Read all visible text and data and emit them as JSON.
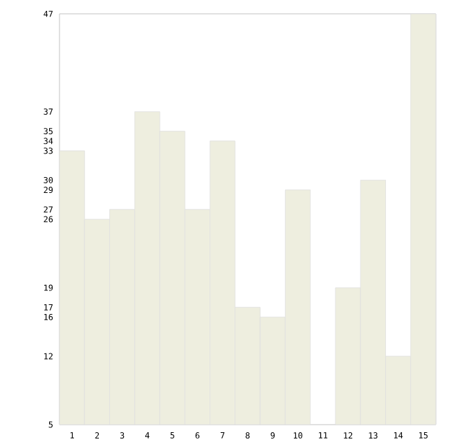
{
  "chart_data": {
    "type": "bar",
    "categories": [
      "1",
      "2",
      "3",
      "4",
      "5",
      "6",
      "7",
      "8",
      "9",
      "10",
      "11",
      "12",
      "13",
      "14",
      "15"
    ],
    "values": [
      33,
      26,
      27,
      37,
      35,
      27,
      34,
      17,
      16,
      29,
      5,
      19,
      30,
      12,
      47
    ],
    "color": "#eeeedf",
    "ylim": [
      5,
      47
    ],
    "yticks": [
      5,
      12,
      16,
      17,
      19,
      26,
      27,
      29,
      30,
      33,
      34,
      35,
      37,
      47
    ]
  }
}
